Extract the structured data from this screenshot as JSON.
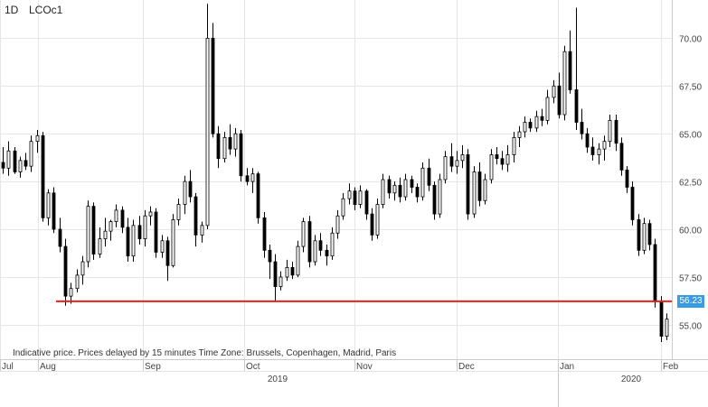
{
  "header": {
    "period": "1D",
    "symbol": "LCOc1"
  },
  "note": "Indicative price. Prices delayed by 15 minutes    Time Zone: Brussels, Copenhagen, Madrid, Paris",
  "chart_data": {
    "type": "candlestick",
    "symbol": "LCOc1",
    "interval": "1D",
    "y_axis": {
      "position": "right",
      "range": [
        53.2,
        72.0
      ],
      "ticks": [
        "55.00",
        "57.50",
        "60.00",
        "62.50",
        "65.00",
        "67.50",
        "70.00"
      ]
    },
    "x_axis": {
      "months": [
        "Jul",
        "Aug",
        "Sep",
        "Oct",
        "Nov",
        "Dec",
        "Jan",
        "Feb"
      ],
      "years": [
        "2019",
        "2020"
      ]
    },
    "grid": true,
    "horizontal_line": {
      "value": 56.23,
      "label": "56.23",
      "color": "#e8211e"
    },
    "colors": {
      "up": "#ffffff",
      "down": "#000000",
      "wick": "#000000",
      "grid": "#e6e6e6",
      "label_bg": "#3a9be0"
    },
    "candles": [
      [
        63.5,
        64.3,
        62.9,
        63.2
      ],
      [
        63.2,
        64.6,
        62.8,
        64.1
      ],
      [
        64.1,
        64.3,
        62.9,
        63.0
      ],
      [
        63.0,
        63.8,
        62.7,
        63.6
      ],
      [
        63.6,
        64.0,
        63.1,
        63.3
      ],
      [
        63.3,
        64.9,
        63.0,
        64.6
      ],
      [
        64.6,
        65.2,
        64.0,
        64.9
      ],
      [
        64.9,
        65.1,
        60.4,
        60.6
      ],
      [
        60.6,
        62.1,
        60.2,
        61.9
      ],
      [
        61.9,
        62.2,
        59.8,
        60.0
      ],
      [
        60.0,
        60.6,
        58.8,
        59.1
      ],
      [
        59.1,
        59.5,
        56.0,
        56.5
      ],
      [
        56.5,
        57.2,
        56.1,
        56.9
      ],
      [
        56.9,
        57.9,
        56.7,
        57.6
      ],
      [
        57.6,
        58.6,
        57.1,
        58.3
      ],
      [
        58.3,
        61.5,
        58.0,
        61.2
      ],
      [
        61.2,
        61.4,
        58.4,
        58.7
      ],
      [
        58.7,
        60.1,
        58.5,
        59.5
      ],
      [
        59.5,
        60.6,
        59.1,
        59.9
      ],
      [
        59.9,
        60.5,
        59.4,
        60.4
      ],
      [
        60.4,
        61.3,
        60.1,
        61.0
      ],
      [
        61.0,
        61.2,
        59.8,
        60.1
      ],
      [
        60.1,
        60.6,
        58.3,
        58.6
      ],
      [
        58.6,
        60.5,
        58.3,
        60.2
      ],
      [
        60.2,
        60.7,
        59.2,
        59.5
      ],
      [
        59.5,
        61.0,
        59.1,
        60.7
      ],
      [
        60.7,
        61.2,
        60.2,
        60.9
      ],
      [
        60.9,
        61.1,
        58.5,
        58.8
      ],
      [
        58.8,
        59.7,
        58.5,
        59.4
      ],
      [
        59.4,
        59.6,
        57.3,
        58.1
      ],
      [
        58.1,
        60.8,
        58.0,
        60.5
      ],
      [
        60.5,
        61.6,
        60.2,
        61.3
      ],
      [
        61.3,
        62.8,
        60.8,
        62.5
      ],
      [
        62.5,
        63.1,
        61.4,
        61.7
      ],
      [
        61.7,
        61.9,
        59.1,
        59.7
      ],
      [
        59.7,
        60.4,
        59.3,
        60.2
      ],
      [
        60.2,
        71.8,
        60.0,
        70.0
      ],
      [
        70.0,
        70.8,
        64.8,
        65.0
      ],
      [
        65.0,
        65.4,
        63.2,
        63.7
      ],
      [
        63.7,
        65.1,
        63.5,
        64.8
      ],
      [
        64.8,
        65.5,
        63.9,
        64.2
      ],
      [
        64.2,
        65.3,
        63.8,
        65.0
      ],
      [
        65.0,
        65.2,
        62.5,
        62.8
      ],
      [
        62.8,
        63.2,
        62.3,
        62.5
      ],
      [
        62.5,
        63.2,
        61.9,
        62.9
      ],
      [
        62.9,
        63.0,
        60.3,
        60.6
      ],
      [
        60.6,
        60.9,
        58.5,
        58.9
      ],
      [
        58.9,
        59.2,
        57.4,
        58.3
      ],
      [
        58.3,
        58.7,
        56.2,
        57.0
      ],
      [
        57.0,
        57.8,
        56.8,
        57.5
      ],
      [
        57.5,
        58.4,
        57.3,
        58.0
      ],
      [
        58.0,
        58.3,
        57.4,
        57.6
      ],
      [
        57.6,
        59.4,
        57.5,
        59.1
      ],
      [
        59.1,
        60.6,
        58.8,
        60.4
      ],
      [
        60.4,
        60.7,
        58.0,
        58.3
      ],
      [
        58.3,
        59.7,
        58.1,
        59.4
      ],
      [
        59.4,
        59.8,
        58.6,
        58.9
      ],
      [
        58.9,
        59.2,
        58.1,
        58.6
      ],
      [
        58.6,
        60.1,
        58.4,
        59.8
      ],
      [
        59.8,
        61.0,
        59.5,
        60.7
      ],
      [
        60.7,
        61.9,
        60.5,
        61.6
      ],
      [
        61.6,
        62.4,
        61.3,
        62.0
      ],
      [
        62.0,
        62.2,
        61.0,
        61.3
      ],
      [
        61.3,
        62.3,
        61.1,
        62.0
      ],
      [
        62.0,
        62.1,
        60.5,
        60.8
      ],
      [
        60.8,
        61.1,
        59.4,
        59.7
      ],
      [
        59.7,
        61.6,
        59.5,
        61.3
      ],
      [
        61.3,
        62.9,
        61.1,
        62.6
      ],
      [
        62.6,
        62.8,
        61.6,
        61.9
      ],
      [
        61.9,
        62.5,
        61.5,
        62.3
      ],
      [
        62.3,
        62.7,
        61.4,
        61.7
      ],
      [
        61.7,
        62.9,
        61.5,
        62.6
      ],
      [
        62.6,
        62.8,
        61.9,
        62.2
      ],
      [
        62.2,
        62.4,
        61.4,
        61.7
      ],
      [
        61.7,
        63.5,
        61.5,
        63.2
      ],
      [
        63.2,
        63.7,
        62.0,
        62.3
      ],
      [
        62.3,
        62.5,
        60.5,
        60.8
      ],
      [
        60.8,
        62.9,
        60.6,
        62.6
      ],
      [
        62.6,
        64.1,
        62.4,
        63.8
      ],
      [
        63.8,
        64.5,
        63.0,
        63.3
      ],
      [
        63.3,
        64.1,
        62.9,
        63.6
      ],
      [
        63.6,
        64.4,
        63.2,
        63.9
      ],
      [
        63.9,
        64.2,
        60.5,
        60.8
      ],
      [
        60.8,
        63.3,
        60.6,
        63.0
      ],
      [
        63.0,
        63.5,
        61.2,
        61.5
      ],
      [
        61.5,
        62.9,
        61.3,
        62.6
      ],
      [
        62.6,
        64.2,
        62.4,
        63.9
      ],
      [
        63.9,
        64.3,
        63.4,
        63.7
      ],
      [
        63.7,
        64.1,
        63.1,
        63.4
      ],
      [
        63.4,
        64.4,
        63.0,
        63.9
      ],
      [
        63.9,
        65.1,
        63.5,
        64.8
      ],
      [
        64.8,
        65.4,
        64.3,
        65.1
      ],
      [
        65.1,
        65.9,
        64.8,
        65.6
      ],
      [
        65.6,
        65.8,
        65.1,
        65.3
      ],
      [
        65.3,
        66.2,
        65.1,
        65.9
      ],
      [
        65.9,
        66.3,
        65.4,
        65.7
      ],
      [
        65.7,
        67.3,
        65.5,
        66.9
      ],
      [
        66.9,
        67.8,
        66.6,
        67.5
      ],
      [
        67.5,
        68.2,
        65.8,
        66.0
      ],
      [
        66.0,
        69.6,
        65.7,
        69.3
      ],
      [
        69.3,
        70.4,
        67.1,
        67.3
      ],
      [
        67.3,
        71.6,
        65.2,
        65.6
      ],
      [
        65.6,
        66.3,
        64.7,
        65.0
      ],
      [
        65.0,
        65.3,
        64.0,
        64.3
      ],
      [
        64.3,
        64.8,
        63.6,
        63.9
      ],
      [
        63.9,
        64.5,
        63.4,
        64.2
      ],
      [
        64.2,
        64.9,
        63.6,
        64.6
      ],
      [
        64.6,
        66.0,
        64.3,
        65.7
      ],
      [
        65.7,
        66.0,
        64.1,
        64.5
      ],
      [
        64.5,
        64.8,
        62.8,
        63.1
      ],
      [
        63.1,
        63.3,
        61.9,
        62.2
      ],
      [
        62.2,
        62.5,
        60.2,
        60.5
      ],
      [
        60.5,
        60.8,
        58.6,
        58.9
      ],
      [
        58.9,
        60.6,
        58.7,
        60.3
      ],
      [
        60.3,
        60.5,
        58.9,
        59.2
      ],
      [
        59.2,
        59.5,
        55.9,
        56.2
      ],
      [
        56.2,
        56.5,
        54.1,
        54.4
      ],
      [
        54.4,
        55.6,
        54.2,
        55.3
      ]
    ]
  }
}
